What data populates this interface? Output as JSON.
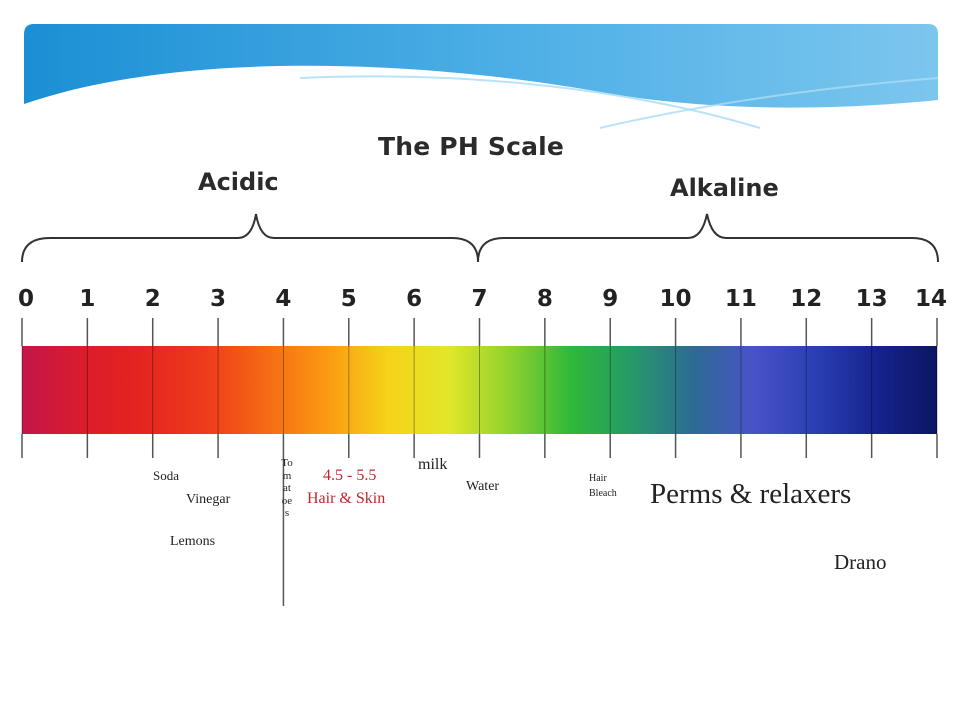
{
  "slide": {
    "title": "The PH Scale",
    "acidic_label": "Acidic",
    "alkaline_label": "Alkaline",
    "colors": {
      "banner_dark": "#1b8fd4",
      "banner_light": "#7cc6ee",
      "text": "#222222",
      "highlight": "#c1272d"
    }
  },
  "scale": {
    "ticks": [
      "0",
      "1",
      "2",
      "3",
      "4",
      "5",
      "6",
      "7",
      "8",
      "9",
      "10",
      "11",
      "12",
      "13",
      "14"
    ],
    "gradient_colors": [
      "#c4154a",
      "#d91d2c",
      "#e5251f",
      "#ee3b1b",
      "#f56a14",
      "#fb9a12",
      "#f6d21a",
      "#e2e62a",
      "#8fd12e",
      "#2fb83a",
      "#26996a",
      "#2c6b92",
      "#4a52c8",
      "#2a3fb3",
      "#17238f",
      "#0b1662"
    ]
  },
  "annotations": {
    "soda": "Soda",
    "vinegar": "Vinegar",
    "lemons": "Lemons",
    "tomatoes": "Tomatoes",
    "hair_skin_range": "4.5 - 5.5",
    "hair_skin_label": "Hair & Skin",
    "milk": "milk",
    "water": "Water",
    "hair_bleach_line1": "Hair",
    "hair_bleach_line2": "Bleach",
    "perms": "Perms & relaxers",
    "drano": "Drano"
  }
}
